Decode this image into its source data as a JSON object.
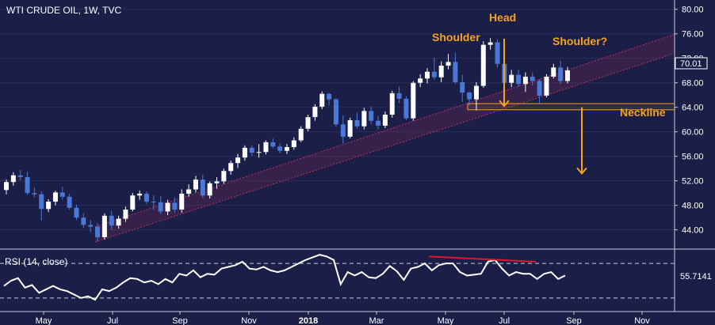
{
  "chart_data": {
    "type": "candlestick",
    "title": "WTI CRUDE OIL, 1W, TVC",
    "y_ticks": [
      "80.00",
      "76.00",
      "72.00",
      "68.00",
      "64.00",
      "60.00",
      "56.00",
      "52.00",
      "48.00",
      "44.00"
    ],
    "ylim": [
      41.5,
      81
    ],
    "x_ticks": [
      "May",
      "Jul",
      "Sep",
      "Nov",
      "2018",
      "Mar",
      "May",
      "Jul",
      "Sep",
      "Nov"
    ],
    "last_price": "70.01",
    "colors": {
      "up": "#ffffff",
      "down": "#4a78d6",
      "annotation": "#f7a21b",
      "channel": "#c0305a",
      "rsi_line": "#ffffff",
      "divergence": "#e0182b"
    },
    "annotations": {
      "shoulder_left": "Shoulder",
      "head": "Head",
      "shoulder_right": "Shoulder?",
      "neckline": "Neckline"
    },
    "neckline_level": 64.0,
    "candles": [
      [
        50.5,
        52.2,
        49.8,
        51.8
      ],
      [
        51.8,
        53.4,
        51.2,
        52.9
      ],
      [
        52.9,
        53.8,
        52.1,
        52.6
      ],
      [
        52.6,
        53.5,
        49.7,
        50.0
      ],
      [
        50.0,
        50.9,
        49.3,
        49.8
      ],
      [
        49.8,
        50.3,
        45.5,
        47.4
      ],
      [
        47.4,
        49.0,
        46.9,
        48.6
      ],
      [
        48.6,
        50.4,
        48.0,
        50.1
      ],
      [
        50.1,
        51.0,
        48.9,
        49.4
      ],
      [
        49.4,
        49.9,
        47.3,
        47.6
      ],
      [
        47.6,
        48.1,
        45.6,
        46.0
      ],
      [
        46.0,
        46.7,
        44.3,
        44.8
      ],
      [
        44.8,
        45.6,
        43.6,
        44.5
      ],
      [
        44.5,
        45.1,
        42.1,
        42.8
      ],
      [
        42.8,
        46.7,
        42.4,
        46.3
      ],
      [
        46.3,
        47.1,
        44.0,
        44.7
      ],
      [
        44.7,
        46.3,
        44.2,
        45.8
      ],
      [
        45.8,
        47.8,
        45.3,
        47.3
      ],
      [
        47.3,
        50.0,
        47.0,
        49.6
      ],
      [
        49.6,
        50.4,
        48.9,
        49.9
      ],
      [
        49.9,
        50.3,
        48.2,
        48.6
      ],
      [
        48.6,
        49.6,
        47.3,
        48.5
      ],
      [
        48.5,
        49.5,
        46.6,
        47.0
      ],
      [
        47.0,
        48.9,
        46.4,
        48.4
      ],
      [
        48.4,
        49.3,
        46.8,
        47.3
      ],
      [
        47.3,
        50.6,
        46.8,
        49.9
      ],
      [
        49.9,
        51.4,
        49.4,
        50.6
      ],
      [
        50.6,
        52.8,
        50.1,
        52.2
      ],
      [
        52.2,
        53.0,
        49.2,
        49.6
      ],
      [
        49.6,
        51.9,
        49.1,
        51.6
      ],
      [
        51.6,
        52.6,
        50.7,
        51.9
      ],
      [
        51.9,
        54.0,
        51.5,
        53.6
      ],
      [
        53.6,
        55.3,
        53.0,
        54.9
      ],
      [
        54.9,
        56.4,
        54.1,
        55.8
      ],
      [
        55.8,
        57.8,
        55.3,
        57.4
      ],
      [
        57.4,
        57.8,
        56.1,
        56.6
      ],
      [
        56.6,
        58.0,
        55.8,
        56.7
      ],
      [
        56.7,
        58.6,
        56.3,
        58.3
      ],
      [
        58.3,
        58.9,
        57.3,
        57.6
      ],
      [
        57.6,
        58.1,
        56.5,
        56.9
      ],
      [
        56.9,
        58.0,
        56.4,
        57.5
      ],
      [
        57.5,
        59.1,
        57.1,
        58.6
      ],
      [
        58.6,
        60.9,
        58.3,
        60.5
      ],
      [
        60.5,
        62.8,
        60.1,
        62.4
      ],
      [
        62.4,
        64.5,
        61.8,
        64.1
      ],
      [
        64.1,
        66.6,
        63.7,
        66.2
      ],
      [
        66.2,
        66.3,
        64.3,
        65.3
      ],
      [
        65.3,
        65.5,
        60.8,
        61.2
      ],
      [
        61.2,
        62.7,
        58.1,
        59.2
      ],
      [
        59.2,
        62.3,
        58.9,
        61.9
      ],
      [
        61.9,
        63.1,
        60.5,
        60.9
      ],
      [
        60.9,
        63.9,
        60.4,
        63.4
      ],
      [
        63.4,
        64.1,
        61.2,
        61.8
      ],
      [
        61.8,
        62.6,
        60.4,
        61.0
      ],
      [
        61.0,
        63.3,
        60.6,
        62.8
      ],
      [
        62.8,
        66.7,
        62.3,
        66.3
      ],
      [
        66.3,
        67.4,
        64.7,
        65.4
      ],
      [
        65.4,
        65.8,
        61.9,
        62.2
      ],
      [
        62.2,
        68.3,
        61.8,
        68.0
      ],
      [
        68.0,
        69.4,
        67.3,
        68.7
      ],
      [
        68.7,
        70.4,
        67.9,
        69.8
      ],
      [
        69.8,
        72.1,
        68.5,
        68.9
      ],
      [
        68.9,
        71.5,
        68.1,
        70.8
      ],
      [
        70.8,
        72.7,
        70.2,
        71.4
      ],
      [
        71.4,
        72.9,
        67.8,
        68.1
      ],
      [
        68.1,
        69.3,
        64.9,
        66.4
      ],
      [
        66.4,
        66.6,
        64.3,
        65.3
      ],
      [
        65.3,
        68.1,
        63.5,
        67.5
      ],
      [
        67.5,
        74.8,
        67.2,
        74.2
      ],
      [
        74.2,
        75.3,
        73.4,
        74.6
      ],
      [
        74.6,
        75.1,
        70.5,
        71.1
      ],
      [
        71.1,
        71.3,
        67.0,
        68.0
      ],
      [
        68.0,
        70.1,
        67.3,
        69.3
      ],
      [
        69.3,
        70.1,
        67.4,
        67.8
      ],
      [
        67.8,
        69.7,
        66.5,
        69.0
      ],
      [
        69.0,
        69.7,
        67.6,
        68.3
      ],
      [
        68.3,
        68.6,
        64.6,
        65.9
      ],
      [
        65.9,
        69.4,
        65.6,
        69.0
      ],
      [
        69.0,
        71.1,
        68.7,
        70.5
      ],
      [
        70.5,
        71.6,
        67.8,
        68.3
      ],
      [
        68.3,
        70.6,
        67.9,
        70.01
      ]
    ],
    "rsi": {
      "label": "RSI (14, close)",
      "last_value": "55.7141",
      "upper_level": 70,
      "lower_level": 30,
      "ylim": [
        18,
        82
      ],
      "values": [
        44,
        50,
        53,
        42,
        45,
        36,
        40,
        44,
        40,
        38,
        34,
        30,
        32,
        28,
        40,
        38,
        42,
        48,
        53,
        52,
        48,
        50,
        46,
        52,
        48,
        58,
        56,
        62,
        54,
        58,
        57,
        64,
        66,
        68,
        72,
        64,
        63,
        66,
        62,
        60,
        62,
        66,
        70,
        74,
        77,
        80,
        78,
        74,
        46,
        60,
        56,
        60,
        54,
        53,
        58,
        67,
        61,
        51,
        64,
        66,
        70,
        62,
        68,
        70,
        70,
        60,
        56,
        57,
        58,
        72,
        74,
        64,
        56,
        60,
        58,
        58,
        52,
        58,
        60,
        52,
        56
      ]
    }
  }
}
